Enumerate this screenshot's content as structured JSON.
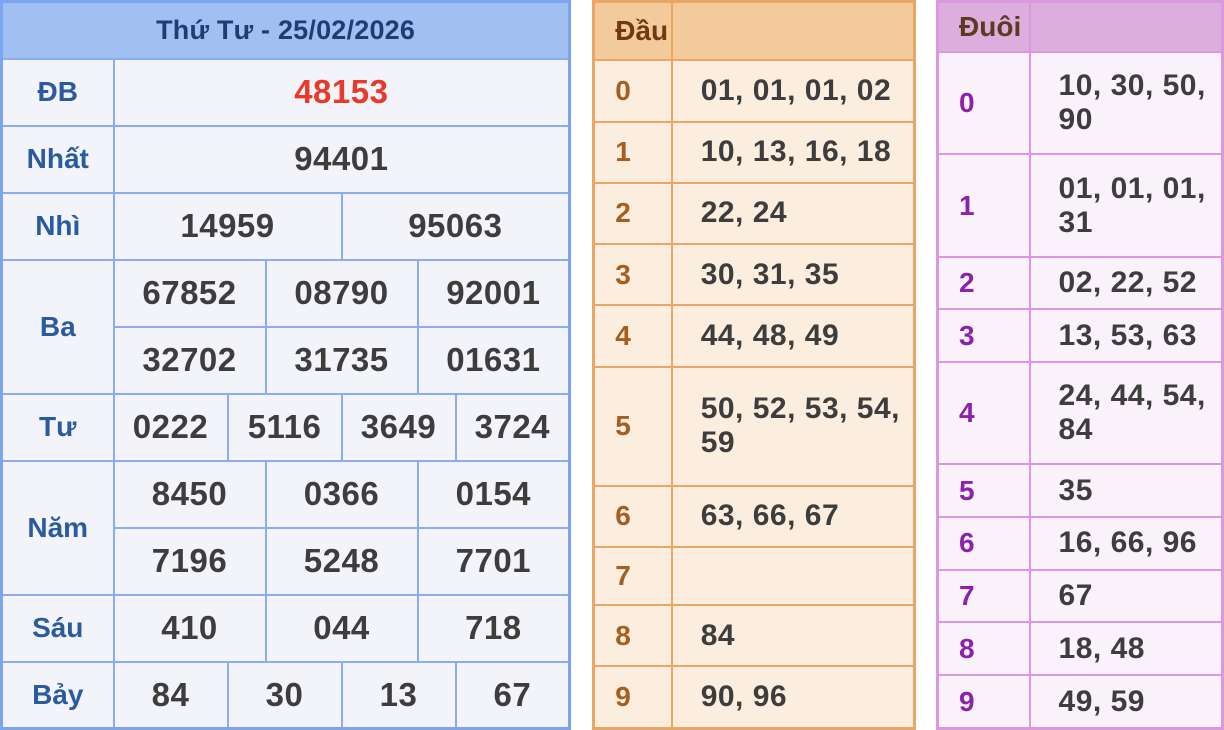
{
  "left": {
    "title": "Thứ Tư - 25/02/2026",
    "rows": [
      {
        "label": "ĐB",
        "values": [
          "48153"
        ]
      },
      {
        "label": "Nhất",
        "values": [
          "94401"
        ]
      },
      {
        "label": "Nhì",
        "values": [
          "14959",
          "95063"
        ]
      },
      {
        "label": "Ba",
        "values": [
          "67852",
          "08790",
          "92001",
          "32702",
          "31735",
          "01631"
        ]
      },
      {
        "label": "Tư",
        "values": [
          "0222",
          "5116",
          "3649",
          "3724"
        ]
      },
      {
        "label": "Năm",
        "values": [
          "8450",
          "0366",
          "0154",
          "7196",
          "5248",
          "7701"
        ]
      },
      {
        "label": "Sáu",
        "values": [
          "410",
          "044",
          "718"
        ]
      },
      {
        "label": "Bảy",
        "values": [
          "84",
          "30",
          "13",
          "67"
        ]
      }
    ],
    "colors": {
      "header_bg": "#a2bff2",
      "header_text": "#1d3e72",
      "border": "#8badf0",
      "cell_bg": "#f2f4f9",
      "label_text": "#2a5b9e",
      "value_text": "#3d3d3d",
      "special_value": "#e8392b"
    }
  },
  "dau": {
    "header": "Đầu",
    "rows": [
      {
        "digit": "0",
        "numbers": "01, 01, 01, 02"
      },
      {
        "digit": "1",
        "numbers": "10, 13, 16, 18"
      },
      {
        "digit": "2",
        "numbers": "22, 24"
      },
      {
        "digit": "3",
        "numbers": "30, 31, 35"
      },
      {
        "digit": "4",
        "numbers": "44, 48, 49"
      },
      {
        "digit": "5",
        "numbers": "50, 52, 53, 54, 59"
      },
      {
        "digit": "6",
        "numbers": "63, 66, 67"
      },
      {
        "digit": "7",
        "numbers": ""
      },
      {
        "digit": "8",
        "numbers": "84"
      },
      {
        "digit": "9",
        "numbers": "90, 96"
      }
    ],
    "colors": {
      "header_bg": "#f2ca9b",
      "header_text": "#70390e",
      "border": "#eaa763",
      "cell_bg": "#fbeede",
      "digit_text": "#a55d20"
    }
  },
  "duoi": {
    "header": "Đuôi",
    "rows": [
      {
        "digit": "0",
        "numbers": "10, 30, 50, 90"
      },
      {
        "digit": "1",
        "numbers": "01, 01, 01, 31"
      },
      {
        "digit": "2",
        "numbers": "02, 22, 52"
      },
      {
        "digit": "3",
        "numbers": "13, 53, 63"
      },
      {
        "digit": "4",
        "numbers": "24, 44, 54, 84"
      },
      {
        "digit": "5",
        "numbers": "35"
      },
      {
        "digit": "6",
        "numbers": "16, 66, 96"
      },
      {
        "digit": "7",
        "numbers": "67"
      },
      {
        "digit": "8",
        "numbers": "18, 48"
      },
      {
        "digit": "9",
        "numbers": "49, 59"
      }
    ],
    "colors": {
      "header_bg": "#dcaede",
      "header_text": "#5c3a20",
      "border": "#dc97de",
      "cell_bg": "#f9f2fa",
      "digit_text": "#8c21aa"
    }
  }
}
